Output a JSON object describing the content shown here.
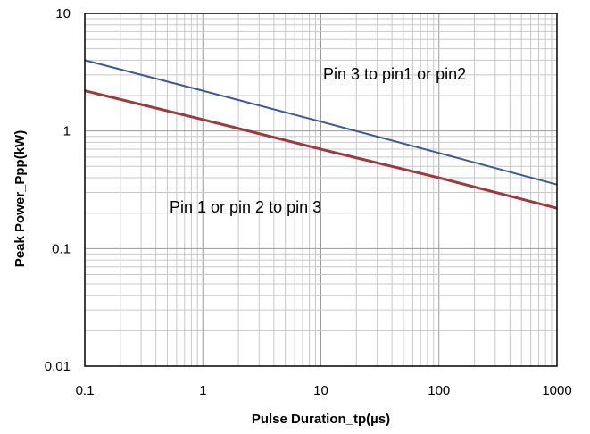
{
  "chart_data": {
    "type": "line",
    "title": "",
    "xlabel": "Pulse Duration_tp(µs)",
    "ylabel": "Peak  Power_Ppp(kW)",
    "xscale": "log",
    "yscale": "log",
    "xlim": [
      0.1,
      1000
    ],
    "ylim": [
      0.01,
      10
    ],
    "grid": true,
    "x_ticks": [
      "0.1",
      "1",
      "10",
      "100",
      "1000"
    ],
    "y_ticks": [
      "0.01",
      "0.1",
      "1",
      "10"
    ],
    "series": [
      {
        "name": "Pin 3 to pin1 or pin2",
        "color": "#3a5b94",
        "x": [
          0.1,
          1,
          10,
          100,
          1000
        ],
        "y": [
          4.0,
          2.2,
          1.2,
          0.65,
          0.35
        ]
      },
      {
        "name": "Pin 1 or pin 2 to pin 3",
        "color": "#a03a3a",
        "x": [
          0.1,
          1,
          10,
          100,
          1000
        ],
        "y": [
          2.2,
          1.25,
          0.7,
          0.4,
          0.22
        ]
      }
    ]
  }
}
